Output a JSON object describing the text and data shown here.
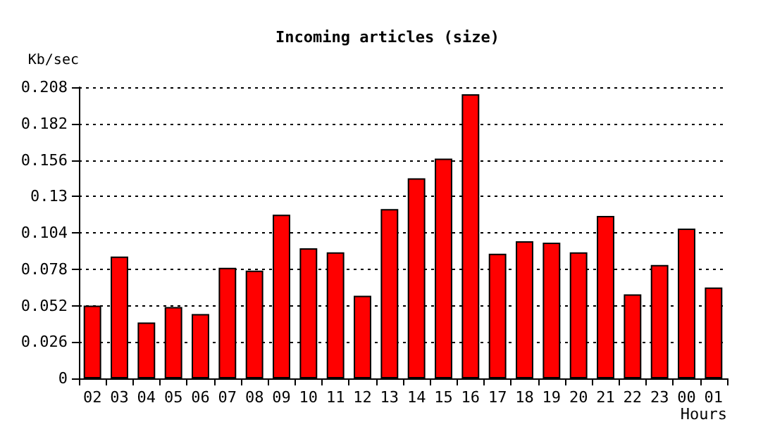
{
  "chart_data": {
    "type": "bar",
    "title": "Incoming articles (size)",
    "xlabel": "Hours",
    "ylabel": "Kb/sec",
    "categories": [
      "02",
      "03",
      "04",
      "05",
      "06",
      "07",
      "08",
      "09",
      "10",
      "11",
      "12",
      "13",
      "14",
      "15",
      "16",
      "17",
      "18",
      "19",
      "20",
      "21",
      "22",
      "23",
      "00",
      "01"
    ],
    "values": [
      0.052,
      0.087,
      0.04,
      0.051,
      0.046,
      0.079,
      0.077,
      0.117,
      0.093,
      0.09,
      0.059,
      0.121,
      0.143,
      0.157,
      0.203,
      0.089,
      0.098,
      0.097,
      0.09,
      0.116,
      0.06,
      0.081,
      0.107,
      0.065
    ],
    "color": "#ff0000",
    "ylim": [
      0,
      0.208
    ],
    "yticks": [
      0,
      0.026,
      0.052,
      0.078,
      0.104,
      0.13,
      0.156,
      0.182,
      0.208
    ],
    "grid": "y"
  }
}
